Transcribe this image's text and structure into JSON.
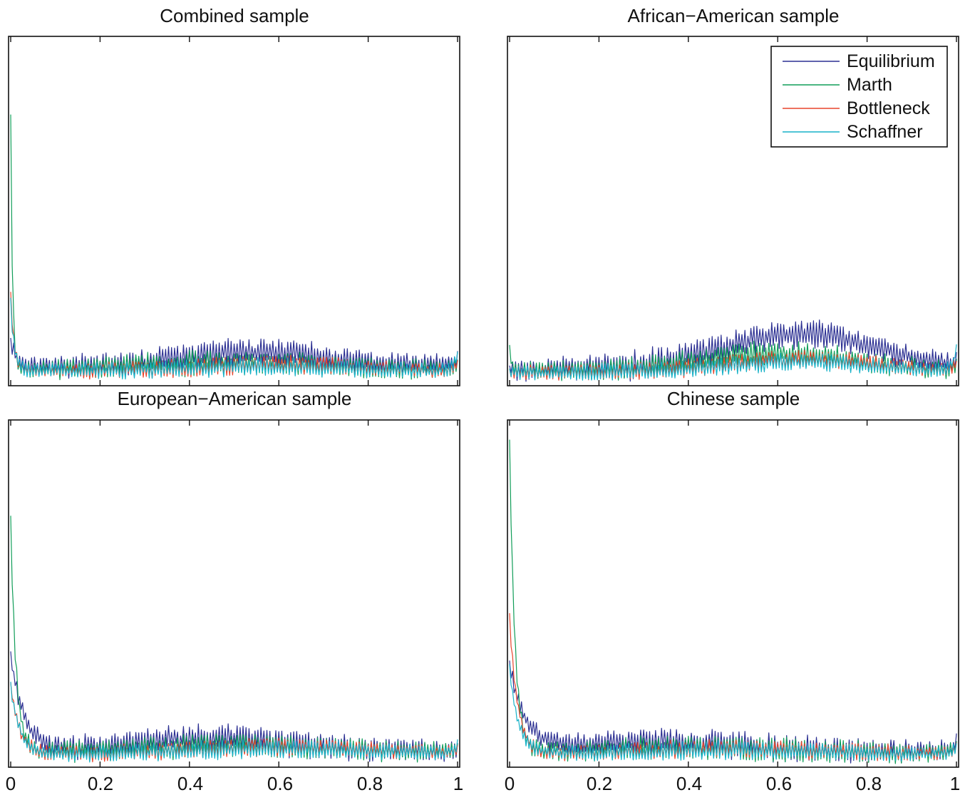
{
  "chart_data": [
    {
      "type": "line",
      "title": "Combined sample",
      "xlabel": "",
      "ylabel": "",
      "xlim": [
        0,
        1
      ],
      "x_ticks": [],
      "legend": null,
      "grid": false,
      "series": [
        {
          "name": "Equilibrium",
          "color": "#2b2f92",
          "baseline": 0.05,
          "spike0": 0.07,
          "decay": 0.012,
          "bump": 0.04,
          "bump_center": 0.55,
          "bump_width": 0.22,
          "tail": 0.02,
          "noise": 0.018,
          "seed": 11
        },
        {
          "name": "Marth",
          "color": "#109d58",
          "baseline": 0.04,
          "spike0": 0.73,
          "decay": 0.004,
          "bump": 0.02,
          "bump_center": 0.5,
          "bump_width": 0.25,
          "tail": 0.01,
          "noise": 0.016,
          "seed": 23
        },
        {
          "name": "Bottleneck",
          "color": "#e8432b",
          "baseline": 0.035,
          "spike0": 0.22,
          "decay": 0.008,
          "bump": 0.018,
          "bump_center": 0.6,
          "bump_width": 0.25,
          "tail": 0.015,
          "noise": 0.012,
          "seed": 37
        },
        {
          "name": "Schaffner",
          "color": "#17b2c8",
          "baseline": 0.035,
          "spike0": 0.2,
          "decay": 0.008,
          "bump": 0.012,
          "bump_center": 0.55,
          "bump_width": 0.25,
          "tail": 0.05,
          "noise": 0.012,
          "seed": 41
        }
      ]
    },
    {
      "type": "line",
      "title": "African−American sample",
      "xlabel": "",
      "ylabel": "",
      "xlim": [
        0,
        1
      ],
      "x_ticks": [],
      "legend": "top-right",
      "grid": false,
      "series": [
        {
          "name": "Equilibrium",
          "color": "#2b2f92",
          "baseline": 0.04,
          "spike0": 0.0,
          "decay": 0.01,
          "bump": 0.1,
          "bump_center": 0.65,
          "bump_width": 0.25,
          "tail": 0.01,
          "noise": 0.02,
          "seed": 53
        },
        {
          "name": "Marth",
          "color": "#109d58",
          "baseline": 0.035,
          "spike0": 0.06,
          "decay": 0.006,
          "bump": 0.05,
          "bump_center": 0.6,
          "bump_width": 0.25,
          "tail": 0.01,
          "noise": 0.016,
          "seed": 61
        },
        {
          "name": "Bottleneck",
          "color": "#e8432b",
          "baseline": 0.03,
          "spike0": 0.0,
          "decay": 0.01,
          "bump": 0.04,
          "bump_center": 0.65,
          "bump_width": 0.25,
          "tail": 0.02,
          "noise": 0.012,
          "seed": 71
        },
        {
          "name": "Schaffner",
          "color": "#17b2c8",
          "baseline": 0.03,
          "spike0": 0.0,
          "decay": 0.01,
          "bump": 0.03,
          "bump_center": 0.65,
          "bump_width": 0.25,
          "tail": 0.06,
          "noise": 0.012,
          "seed": 83
        }
      ]
    },
    {
      "type": "line",
      "title": "European−American sample",
      "xlabel": "",
      "ylabel": "",
      "xlim": [
        0,
        1
      ],
      "x_ticks": [
        "0",
        "0.2",
        "0.4",
        "0.6",
        "0.8",
        "1"
      ],
      "legend": null,
      "grid": false,
      "series": [
        {
          "name": "Equilibrium",
          "color": "#2b2f92",
          "baseline": 0.04,
          "spike0": 0.28,
          "decay": 0.03,
          "bump": 0.035,
          "bump_center": 0.45,
          "bump_width": 0.25,
          "tail": 0.01,
          "noise": 0.018,
          "seed": 97
        },
        {
          "name": "Marth",
          "color": "#109d58",
          "baseline": 0.035,
          "spike0": 0.68,
          "decay": 0.012,
          "bump": 0.02,
          "bump_center": 0.5,
          "bump_width": 0.3,
          "tail": 0.01,
          "noise": 0.016,
          "seed": 101
        },
        {
          "name": "Bottleneck",
          "color": "#e8432b",
          "baseline": 0.03,
          "spike0": 0.2,
          "decay": 0.02,
          "bump": 0.02,
          "bump_center": 0.6,
          "bump_width": 0.3,
          "tail": 0.015,
          "noise": 0.012,
          "seed": 113
        },
        {
          "name": "Schaffner",
          "color": "#17b2c8",
          "baseline": 0.03,
          "spike0": 0.2,
          "decay": 0.02,
          "bump": 0.015,
          "bump_center": 0.6,
          "bump_width": 0.3,
          "tail": 0.03,
          "noise": 0.012,
          "seed": 127
        }
      ]
    },
    {
      "type": "line",
      "title": "Chinese sample",
      "xlabel": "",
      "ylabel": "",
      "xlim": [
        0,
        1
      ],
      "x_ticks": [
        "0",
        "0.2",
        "0.4",
        "0.6",
        "0.8",
        "1"
      ],
      "legend": null,
      "grid": false,
      "series": [
        {
          "name": "Equilibrium",
          "color": "#2b2f92",
          "baseline": 0.04,
          "spike0": 0.25,
          "decay": 0.035,
          "bump": 0.025,
          "bump_center": 0.35,
          "bump_width": 0.25,
          "tail": 0.02,
          "noise": 0.018,
          "seed": 131
        },
        {
          "name": "Marth",
          "color": "#109d58",
          "baseline": 0.035,
          "spike0": 0.9,
          "decay": 0.012,
          "bump": 0.015,
          "bump_center": 0.4,
          "bump_width": 0.25,
          "tail": 0.02,
          "noise": 0.016,
          "seed": 137
        },
        {
          "name": "Bottleneck",
          "color": "#e8432b",
          "baseline": 0.03,
          "spike0": 0.4,
          "decay": 0.018,
          "bump": 0.015,
          "bump_center": 0.5,
          "bump_width": 0.3,
          "tail": 0.02,
          "noise": 0.012,
          "seed": 149
        },
        {
          "name": "Schaffner",
          "color": "#17b2c8",
          "baseline": 0.03,
          "spike0": 0.25,
          "decay": 0.02,
          "bump": 0.01,
          "bump_center": 0.5,
          "bump_width": 0.3,
          "tail": 0.02,
          "noise": 0.012,
          "seed": 151
        }
      ]
    }
  ]
}
